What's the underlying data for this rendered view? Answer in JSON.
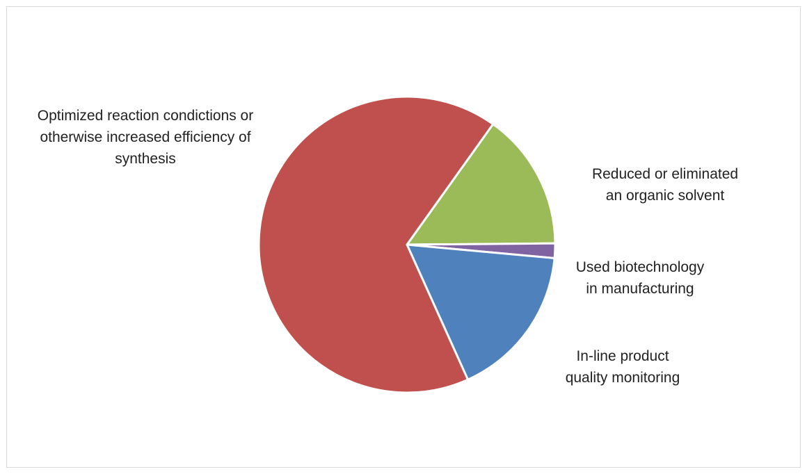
{
  "chart_data": {
    "type": "pie",
    "title": "",
    "legend": "none",
    "slices": [
      {
        "label": "Reduced or eliminated\nan organic solvent",
        "value": 15.0,
        "color": "#9bbb59"
      },
      {
        "label": "Used biotechnology\nin manufacturing",
        "value": 1.6,
        "color": "#8064a2"
      },
      {
        "label": "In-line product\nquality monitoring",
        "value": 16.8,
        "color": "#4f81bd"
      },
      {
        "label": "Optimized reaction condictions or\notherwise increased efficiency of\nsynthesis",
        "value": 66.6,
        "color": "#c0504d"
      }
    ]
  }
}
